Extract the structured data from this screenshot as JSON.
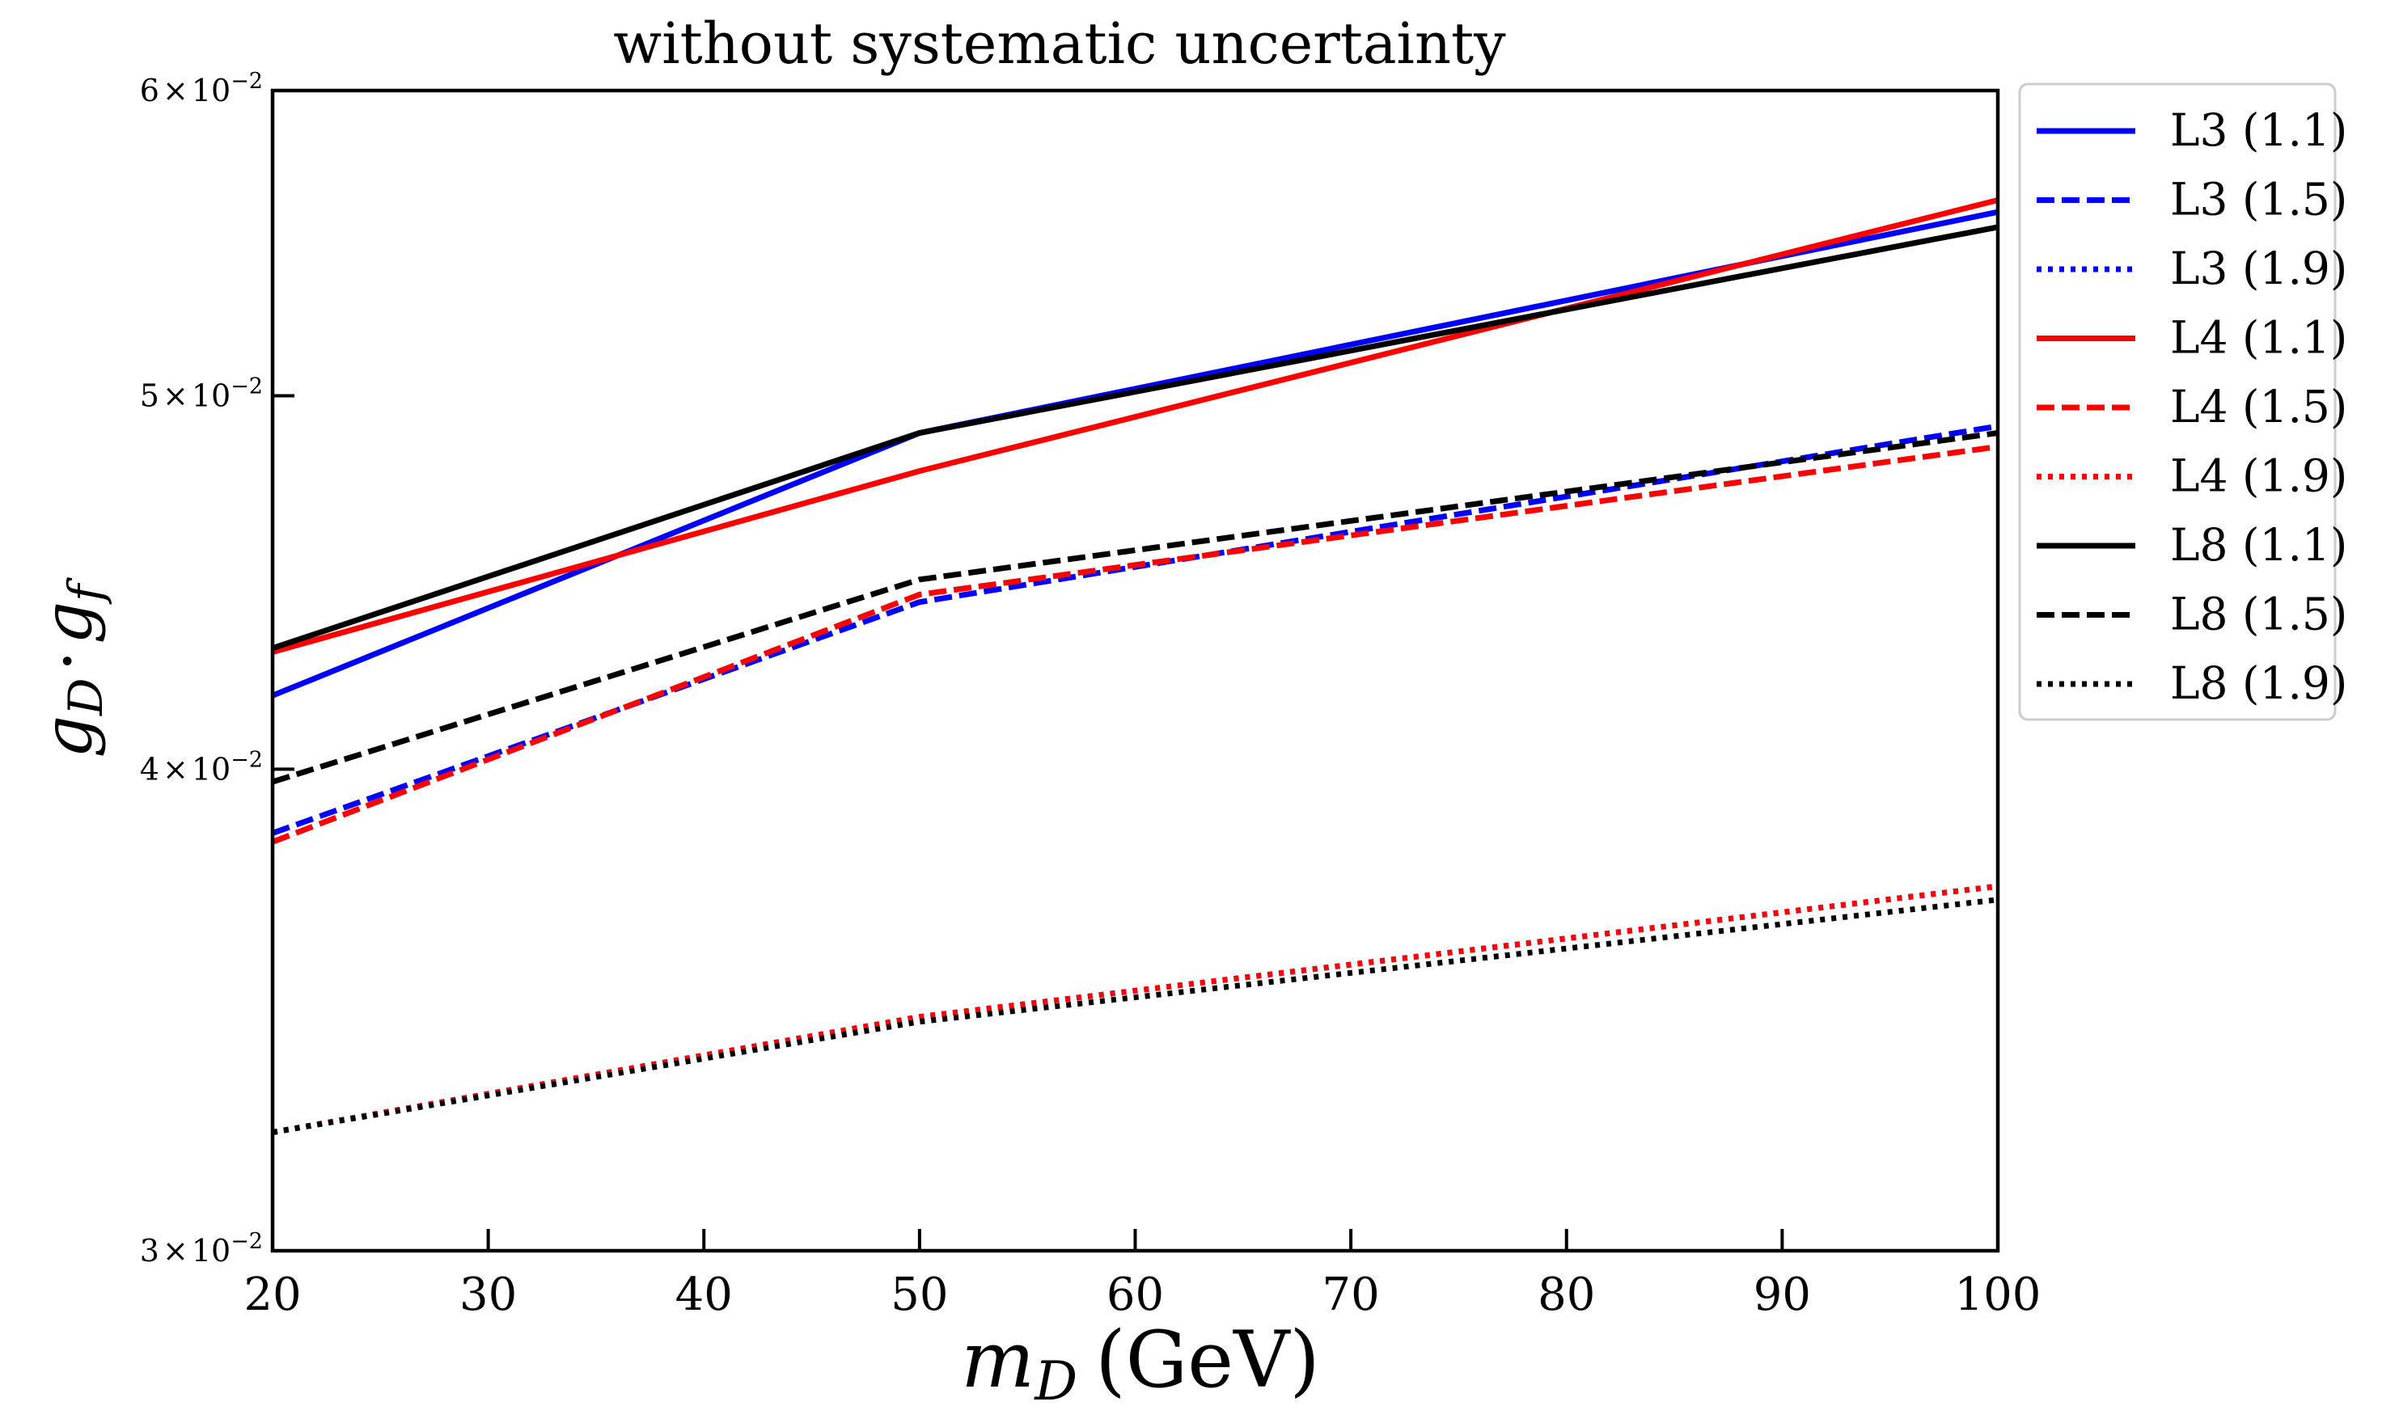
{
  "chart_data": {
    "type": "line",
    "title": "without systematic uncertainty",
    "xlabel": "m",
    "xlabel_sub": "D",
    "xlabel_unit": "(GeV)",
    "ylabel_main": "g",
    "ylabel_sub1": "D",
    "ylabel_dot": "·",
    "ylabel_main2": "g",
    "ylabel_sub2": "f",
    "xlim": [
      20,
      100
    ],
    "ylim": [
      0.03,
      0.06
    ],
    "yscale": "log",
    "x": [
      20,
      50,
      100
    ],
    "xticks": [
      20,
      30,
      40,
      50,
      60,
      70,
      80,
      90,
      100
    ],
    "xtick_labels": [
      "20",
      "30",
      "40",
      "50",
      "60",
      "70",
      "80",
      "90",
      "100"
    ],
    "yticks": [
      {
        "value": 0.06,
        "mant": "6",
        "times": "×",
        "base": "10",
        "exp": "−2"
      },
      {
        "value": 0.05,
        "mant": "5",
        "times": "×",
        "base": "10",
        "exp": "−2"
      },
      {
        "value": 0.04,
        "mant": "4",
        "times": "×",
        "base": "10",
        "exp": "−2"
      },
      {
        "value": 0.03,
        "mant": "3",
        "times": "×",
        "base": "10",
        "exp": "−2"
      }
    ],
    "legend_position": "outside-right-top",
    "series": [
      {
        "name": "L3 (1.1)",
        "color": "#0000ff",
        "style": "solid",
        "values": [
          0.0418,
          0.0489,
          0.0558
        ]
      },
      {
        "name": "L3 (1.5)",
        "color": "#0000ff",
        "style": "dashed",
        "values": [
          0.0385,
          0.0442,
          0.0491
        ]
      },
      {
        "name": "L3 (1.9)",
        "color": "#0000ff",
        "style": "dotted",
        "values": [
          0.0322,
          0.0345,
          0.0373
        ]
      },
      {
        "name": "L4 (1.1)",
        "color": "#ff0000",
        "style": "solid",
        "values": [
          0.0429,
          0.0478,
          0.0562
        ]
      },
      {
        "name": "L4 (1.5)",
        "color": "#ff0000",
        "style": "dashed",
        "values": [
          0.0383,
          0.0444,
          0.0485
        ]
      },
      {
        "name": "L4 (1.9)",
        "color": "#ff0000",
        "style": "dotted",
        "values": [
          0.0322,
          0.0345,
          0.0373
        ]
      },
      {
        "name": "L8 (1.1)",
        "color": "#000000",
        "style": "solid",
        "values": [
          0.043,
          0.0489,
          0.0553
        ]
      },
      {
        "name": "L8 (1.5)",
        "color": "#000000",
        "style": "dashed",
        "values": [
          0.0397,
          0.0448,
          0.0489
        ]
      },
      {
        "name": "L8 (1.9)",
        "color": "#000000",
        "style": "dotted",
        "values": [
          0.0322,
          0.0344,
          0.037
        ]
      }
    ]
  }
}
